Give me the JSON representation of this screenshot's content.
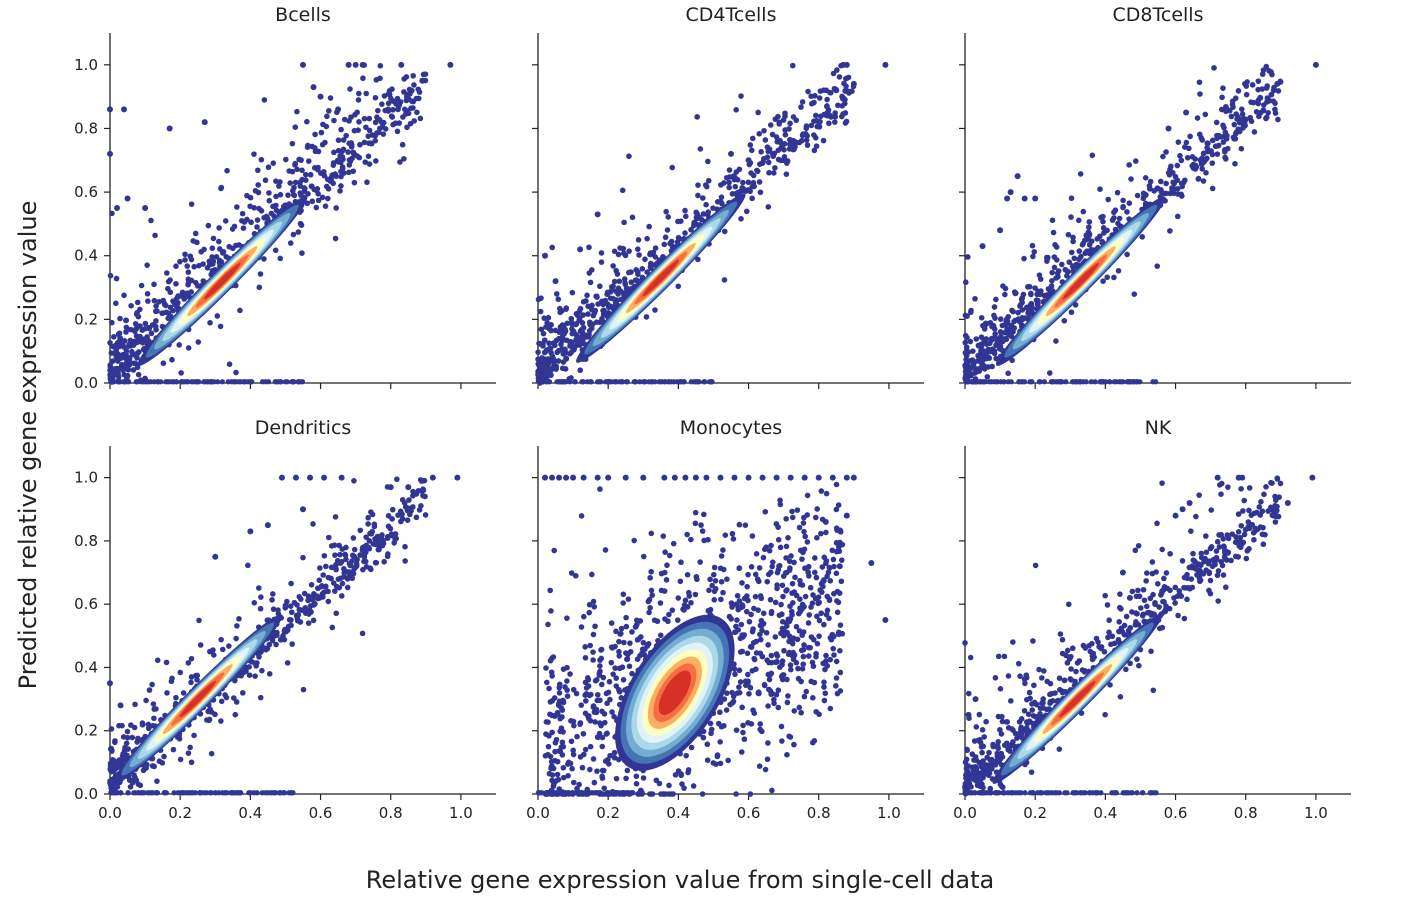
{
  "figure": {
    "xlabel": "Relative gene expression value from single-cell data",
    "ylabel": "Predicted relative gene expression value"
  },
  "chart_data": {
    "type": "scatter",
    "x_range": [
      0.0,
      1.1
    ],
    "y_range": [
      0.0,
      1.1
    ],
    "x_ticks": [
      "0.0",
      "0.2",
      "0.4",
      "0.6",
      "0.8",
      "1.0"
    ],
    "y_ticks": [
      "0.0",
      "0.2",
      "0.4",
      "0.6",
      "0.8",
      "1.0"
    ],
    "grid": false,
    "density_colors": [
      "#313695",
      "#4575b4",
      "#74add1",
      "#abd9e9",
      "#e0f3f8",
      "#ffffbf",
      "#fdae61",
      "#f46d43",
      "#d73027"
    ],
    "point_color": "#313695",
    "panels": [
      {
        "title": "Bcells",
        "density_center": [
          0.32,
          0.32
        ],
        "outliers": [
          [
            0.0,
            0.86
          ],
          [
            0.04,
            0.86
          ],
          [
            0.17,
            0.8
          ],
          [
            0.27,
            0.82
          ],
          [
            0.55,
            1.0
          ],
          [
            0.68,
            1.0
          ],
          [
            0.7,
            1.0
          ],
          [
            0.72,
            1.0
          ],
          [
            0.83,
            1.0
          ],
          [
            0.89,
            0.95
          ],
          [
            0.97,
            1.0
          ],
          [
            0.58,
            0.93
          ],
          [
            0.6,
            0.9
          ],
          [
            0.02,
            0.55
          ],
          [
            0.05,
            0.58
          ],
          [
            0.1,
            0.55
          ],
          [
            0.65,
            0.86
          ],
          [
            0.0,
            0.72
          ]
        ]
      },
      {
        "title": "CD4Tcells",
        "density_center": [
          0.35,
          0.33
        ],
        "outliers": [
          [
            0.87,
            1.0
          ],
          [
            0.88,
            1.0
          ],
          [
            0.99,
            1.0
          ],
          [
            0.9,
            0.94
          ],
          [
            0.85,
            0.92
          ],
          [
            0.55,
            0.72
          ],
          [
            0.6,
            0.7
          ],
          [
            0.17,
            0.53
          ],
          [
            0.02,
            0.4
          ],
          [
            0.05,
            0.32
          ],
          [
            0.12,
            0.42
          ]
        ]
      },
      {
        "title": "CD8Tcells",
        "density_center": [
          0.33,
          0.32
        ],
        "outliers": [
          [
            1.0,
            1.0
          ],
          [
            0.88,
            0.92
          ],
          [
            0.89,
            0.94
          ],
          [
            0.63,
            0.85
          ],
          [
            0.58,
            0.8
          ],
          [
            0.15,
            0.65
          ],
          [
            0.17,
            0.58
          ],
          [
            0.13,
            0.6
          ],
          [
            0.12,
            0.58
          ],
          [
            0.2,
            0.58
          ],
          [
            0.05,
            0.43
          ],
          [
            0.1,
            0.48
          ]
        ]
      },
      {
        "title": "Dendritics",
        "density_center": [
          0.25,
          0.3
        ],
        "outliers": [
          [
            0.49,
            1.0
          ],
          [
            0.53,
            1.0
          ],
          [
            0.57,
            1.0
          ],
          [
            0.61,
            1.0
          ],
          [
            0.66,
            1.0
          ],
          [
            0.92,
            1.0
          ],
          [
            0.99,
            1.0
          ],
          [
            0.85,
            0.97
          ],
          [
            0.8,
            0.97
          ],
          [
            0.55,
            0.9
          ],
          [
            0.45,
            0.85
          ],
          [
            0.4,
            0.83
          ],
          [
            0.3,
            0.75
          ],
          [
            0.03,
            0.28
          ],
          [
            0.0,
            0.35
          ]
        ]
      },
      {
        "title": "Monocytes",
        "density_center": [
          0.39,
          0.32
        ],
        "outliers": [
          [
            0.02,
            1.0
          ],
          [
            0.04,
            1.0
          ],
          [
            0.06,
            1.0
          ],
          [
            0.08,
            1.0
          ],
          [
            0.1,
            1.0
          ],
          [
            0.13,
            1.0
          ],
          [
            0.17,
            1.0
          ],
          [
            0.2,
            1.0
          ],
          [
            0.25,
            1.0
          ],
          [
            0.3,
            1.0
          ],
          [
            0.36,
            1.0
          ],
          [
            0.39,
            1.0
          ],
          [
            0.42,
            1.0
          ],
          [
            0.45,
            1.0
          ],
          [
            0.48,
            1.0
          ],
          [
            0.52,
            1.0
          ],
          [
            0.56,
            1.0
          ],
          [
            0.6,
            1.0
          ],
          [
            0.64,
            1.0
          ],
          [
            0.68,
            1.0
          ],
          [
            0.72,
            1.0
          ],
          [
            0.76,
            1.0
          ],
          [
            0.8,
            1.0
          ],
          [
            0.84,
            1.0
          ],
          [
            0.88,
            1.0
          ],
          [
            0.9,
            1.0
          ],
          [
            0.95,
            0.73
          ],
          [
            0.99,
            0.55
          ],
          [
            0.86,
            0.72
          ],
          [
            0.82,
            0.86
          ],
          [
            0.88,
            0.88
          ]
        ]
      },
      {
        "title": "NK",
        "density_center": [
          0.32,
          0.3
        ],
        "outliers": [
          [
            0.72,
            1.0
          ],
          [
            0.78,
            1.0
          ],
          [
            0.79,
            1.0
          ],
          [
            0.99,
            1.0
          ],
          [
            0.62,
            0.9
          ],
          [
            0.64,
            0.92
          ],
          [
            0.6,
            0.88
          ],
          [
            0.92,
            0.92
          ],
          [
            0.88,
            0.88
          ],
          [
            0.45,
            0.7
          ],
          [
            0.47,
            0.62
          ],
          [
            0.03,
            0.3
          ],
          [
            0.01,
            0.25
          ]
        ]
      }
    ]
  }
}
